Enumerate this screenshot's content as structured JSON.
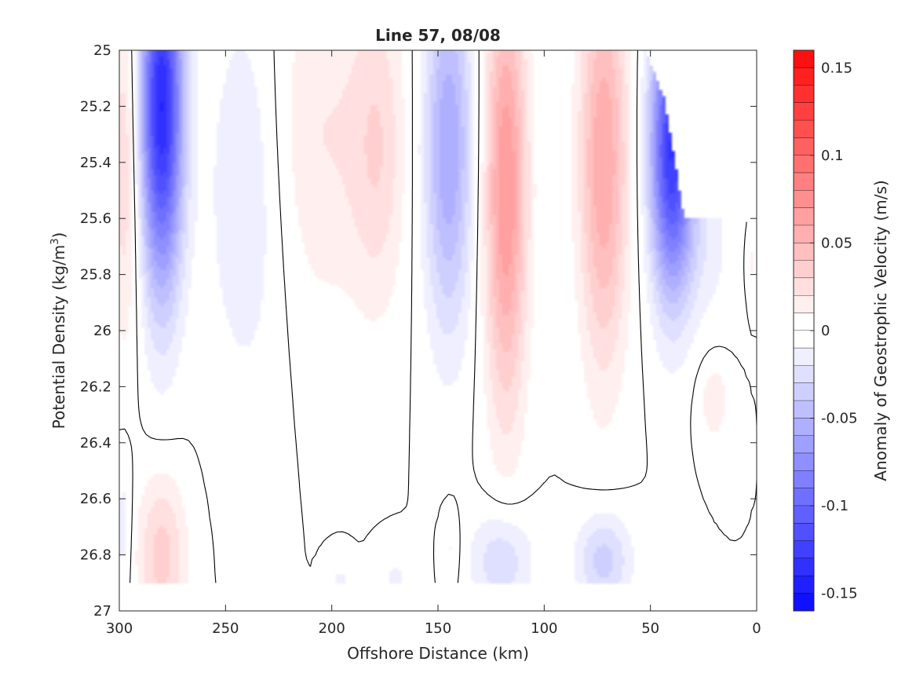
{
  "chart_data": {
    "type": "heatmap",
    "title": "Line 57, 08/08",
    "xlabel": "Offshore Distance (km)",
    "ylabel": "Potential Density (kg/m^3)",
    "ylabel_parts": {
      "main": "Potential Density (kg/m",
      "sup": "3",
      "tail": ")"
    },
    "colorbar_label": "Anomaly of Geostrophic Velocity (m/s)",
    "xlim": [
      300,
      0
    ],
    "ylim": [
      25,
      27
    ],
    "y_reversed": true,
    "clim": [
      -0.16,
      0.16
    ],
    "contour_step": 0.01,
    "x_ticks": [
      300,
      250,
      200,
      150,
      100,
      50,
      0
    ],
    "x_tick_labels": [
      "300",
      "250",
      "200",
      "150",
      "100",
      "50",
      "0"
    ],
    "y_ticks": [
      25,
      25.2,
      25.4,
      25.6,
      25.8,
      26,
      26.2,
      26.4,
      26.6,
      26.8,
      27
    ],
    "y_tick_labels": [
      "25",
      "25.2",
      "25.4",
      "25.6",
      "25.8",
      "26",
      "26.2",
      "26.4",
      "26.6",
      "26.8",
      "27"
    ],
    "colorbar_ticks": [
      0.15,
      0.1,
      0.05,
      0,
      -0.05,
      -0.1,
      -0.15
    ],
    "colorbar_tick_labels": [
      "0.15",
      "0.1",
      "0.05",
      "0",
      "-0.05",
      "-0.1",
      "-0.15"
    ],
    "colormap": {
      "negative": "#0000ff",
      "zero": "#ffffff",
      "positive": "#ff0000"
    },
    "contour_color": "#000000",
    "grid": false,
    "features": [
      {
        "x": 280,
        "y": 25.2,
        "sx": 7,
        "sy": 0.45,
        "amp": -0.14
      },
      {
        "x": 297,
        "y": 25.4,
        "sx": 5,
        "sy": 0.45,
        "amp": 0.03
      },
      {
        "x": 240,
        "y": 25.5,
        "sx": 13,
        "sy": 0.5,
        "amp": -0.02
      },
      {
        "x": 205,
        "y": 25.3,
        "sx": 18,
        "sy": 0.45,
        "amp": 0.02
      },
      {
        "x": 178,
        "y": 25.35,
        "sx": 9,
        "sy": 0.4,
        "amp": 0.025
      },
      {
        "x": 145,
        "y": 25.35,
        "sx": 8,
        "sy": 0.45,
        "amp": -0.06
      },
      {
        "x": 118,
        "y": 25.5,
        "sx": 7,
        "sy": 0.55,
        "amp": 0.07
      },
      {
        "x": 72,
        "y": 25.4,
        "sx": 8,
        "sy": 0.5,
        "amp": 0.06
      },
      {
        "x": 40,
        "y": 25.35,
        "sx": 7,
        "sy": 0.35,
        "amp": -0.13
      },
      {
        "x": 25,
        "y": 25.7,
        "sx": 10,
        "sy": 0.2,
        "amp": -0.015
      },
      {
        "x": 20,
        "y": 26.25,
        "sx": 5,
        "sy": 0.1,
        "amp": 0.018
      },
      {
        "x": 2,
        "y": 25.75,
        "sx": 2,
        "sy": 0.1,
        "amp": 0.012
      },
      {
        "x": 280,
        "y": 26.8,
        "sx": 8,
        "sy": 0.2,
        "amp": 0.035
      },
      {
        "x": 298,
        "y": 26.7,
        "sx": 3,
        "sy": 0.2,
        "amp": -0.015
      },
      {
        "x": 196,
        "y": 26.9,
        "sx": 4,
        "sy": 0.06,
        "amp": -0.012
      },
      {
        "x": 170,
        "y": 26.9,
        "sx": 6,
        "sy": 0.08,
        "amp": -0.012
      },
      {
        "x": 144,
        "y": 26.78,
        "sx": 3,
        "sy": 0.1,
        "amp": 0.012
      },
      {
        "x": 120,
        "y": 26.82,
        "sx": 10,
        "sy": 0.13,
        "amp": -0.03
      },
      {
        "x": 72,
        "y": 26.82,
        "sx": 9,
        "sy": 0.12,
        "amp": -0.035
      }
    ]
  }
}
